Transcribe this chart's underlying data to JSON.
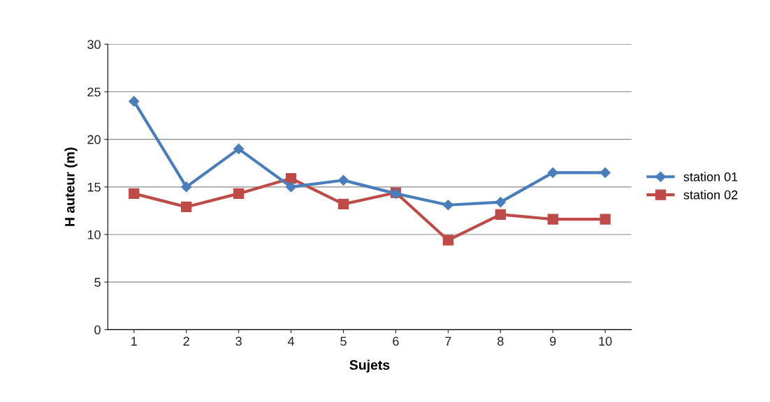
{
  "chart_data": {
    "type": "line",
    "xlabel": "Sujets",
    "ylabel": "H auteur (m)",
    "categories": [
      "1",
      "2",
      "3",
      "4",
      "5",
      "6",
      "7",
      "8",
      "9",
      "10"
    ],
    "series": [
      {
        "name": "station 01",
        "color": "#4a7ebb",
        "marker": "diamond",
        "values": [
          24.0,
          15.0,
          19.0,
          15.0,
          15.7,
          14.3,
          13.1,
          13.4,
          16.5,
          16.5
        ]
      },
      {
        "name": "station 02",
        "color": "#be4b48",
        "marker": "square",
        "values": [
          14.3,
          12.9,
          14.3,
          15.9,
          13.2,
          14.4,
          9.4,
          12.1,
          11.6,
          11.6
        ]
      }
    ],
    "ylim": [
      0,
      30
    ],
    "yticks": [
      0,
      5,
      10,
      15,
      20,
      25,
      30
    ],
    "grid": "y",
    "legend": "right",
    "line_style": "solid"
  }
}
